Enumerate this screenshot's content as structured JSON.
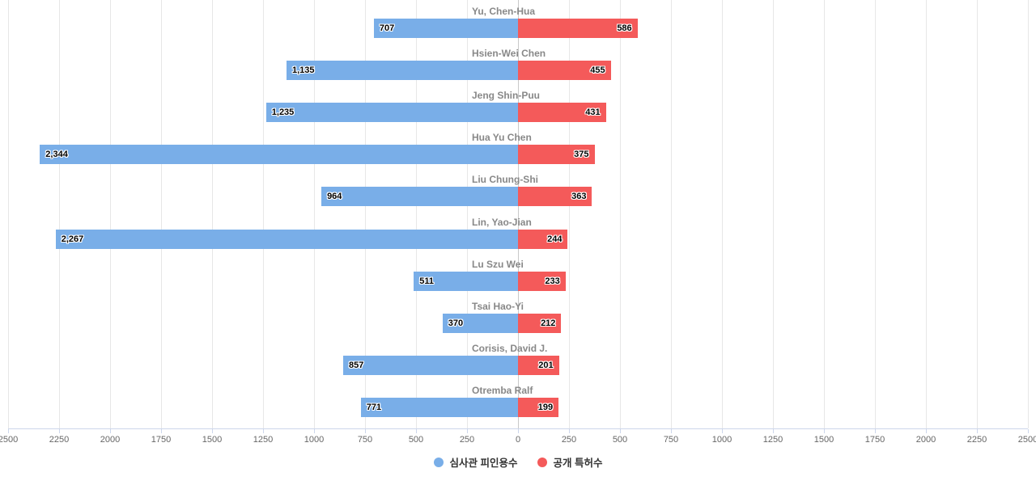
{
  "chart_data": {
    "type": "bar",
    "variant": "diverging-horizontal",
    "title": "",
    "categories": [
      "Yu, Chen-Hua",
      "Hsien-Wei Chen",
      "Jeng Shin-Puu",
      "Hua Yu Chen",
      "Liu Chung-Shi",
      "Lin, Yao-Jian",
      "Lu Szu Wei",
      "Tsai Hao-Yi",
      "Corisis, David J.",
      "Otremba Ralf"
    ],
    "series": [
      {
        "name": "심사관 피인용수",
        "color": "#79AEE8",
        "direction": "left",
        "values": [
          707,
          1135,
          1235,
          2344,
          964,
          2267,
          511,
          370,
          857,
          771
        ],
        "value_labels": [
          "707",
          "1,135",
          "1,235",
          "2,344",
          "964",
          "2,267",
          "511",
          "370",
          "857",
          "771"
        ]
      },
      {
        "name": "공개 특허수",
        "color": "#F45A5A",
        "direction": "right",
        "values": [
          586,
          455,
          431,
          375,
          363,
          244,
          233,
          212,
          201,
          199
        ],
        "value_labels": [
          "586",
          "455",
          "431",
          "375",
          "363",
          "244",
          "233",
          "212",
          "201",
          "199"
        ]
      }
    ],
    "xlim": [
      -2500,
      2500
    ],
    "tick_step": 250,
    "tick_labels": [
      "2500",
      "2250",
      "2000",
      "1750",
      "1500",
      "1250",
      "1000",
      "750",
      "500",
      "250",
      "0",
      "250",
      "500",
      "750",
      "1000",
      "1250",
      "1500",
      "1750",
      "2000",
      "2250",
      "2500"
    ],
    "grid": true,
    "legend_position": "bottom-center"
  },
  "legend": {
    "items": [
      {
        "label": "심사관 피인용수",
        "color": "#79AEE8"
      },
      {
        "label": "공개 특허수",
        "color": "#F45A5A"
      }
    ]
  },
  "colors": {
    "grid_line": "#e7e7e7",
    "zero_line": "#c9c9c9",
    "axis_line": "#ccd6eb",
    "category_label": "#888888",
    "tick_label": "#666666",
    "value_label": "#000000",
    "background": "#ffffff"
  }
}
